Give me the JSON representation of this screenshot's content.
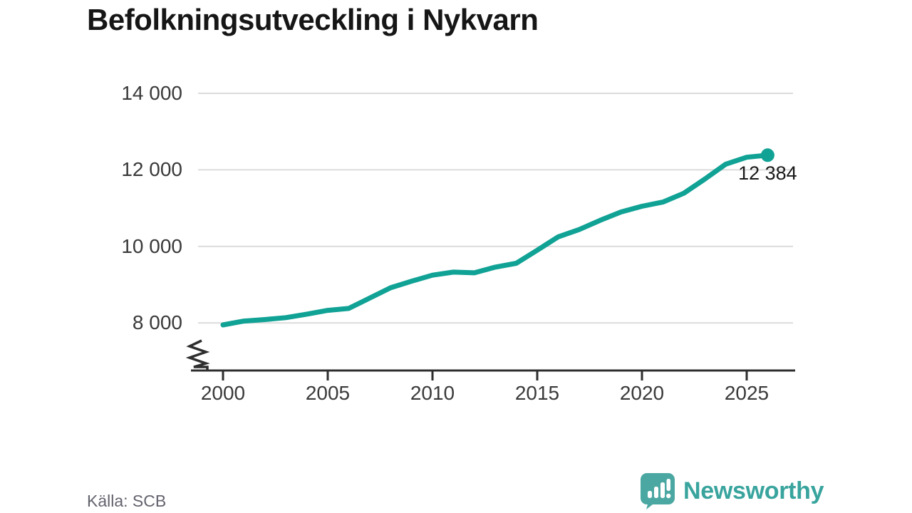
{
  "header": {
    "title": "Befolkningsutveckling i Nykvarn"
  },
  "chart_data": {
    "type": "line",
    "title": "Befolkningsutveckling i Nykvarn",
    "x": [
      2000,
      2001,
      2002,
      2003,
      2004,
      2005,
      2006,
      2007,
      2008,
      2009,
      2010,
      2011,
      2012,
      2013,
      2014,
      2015,
      2016,
      2017,
      2018,
      2019,
      2020,
      2021,
      2022,
      2023,
      2024,
      2025,
      2026
    ],
    "values": [
      7950,
      8050,
      8090,
      8140,
      8230,
      8330,
      8380,
      8650,
      8920,
      9090,
      9250,
      9330,
      9310,
      9460,
      9560,
      9900,
      10250,
      10440,
      10680,
      10900,
      11050,
      11160,
      11390,
      11760,
      12150,
      12330,
      12384
    ],
    "end_value": 12384,
    "end_label": "12 384",
    "xticks": [
      {
        "value": 2000,
        "label": "2000"
      },
      {
        "value": 2005,
        "label": "2005"
      },
      {
        "value": 2010,
        "label": "2010"
      },
      {
        "value": 2015,
        "label": "2015"
      },
      {
        "value": 2020,
        "label": "2020"
      },
      {
        "value": 2025,
        "label": "2025"
      }
    ],
    "yticks": [
      {
        "value": 8000,
        "label": "8 000"
      },
      {
        "value": 10000,
        "label": "10 000"
      },
      {
        "value": 12000,
        "label": "12 000"
      },
      {
        "value": 14000,
        "label": "14 000"
      }
    ],
    "ylim": [
      8000,
      14000
    ],
    "axis_break": true,
    "grid": true,
    "legend_position": "none",
    "line_color": "#10a295",
    "grid_color": "#dcdcdc",
    "axis_color": "#2e2e2e",
    "label_color": "#3a3a3a"
  },
  "footer": {
    "source": "Källa: SCB",
    "brand": "Newsworthy",
    "brand_color": "#38a49d",
    "logo_icon": "bar-chart-speech-bubble"
  }
}
